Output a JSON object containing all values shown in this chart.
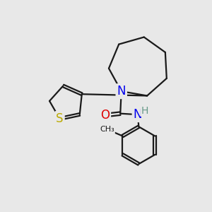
{
  "background_color": "#e8e8e8",
  "bond_color": "#1a1a1a",
  "bond_width": 1.6,
  "atom_colors": {
    "N": "#0000ee",
    "O": "#dd0000",
    "S": "#bbaa00",
    "H": "#669988",
    "C": "#1a1a1a"
  },
  "fs": 12
}
